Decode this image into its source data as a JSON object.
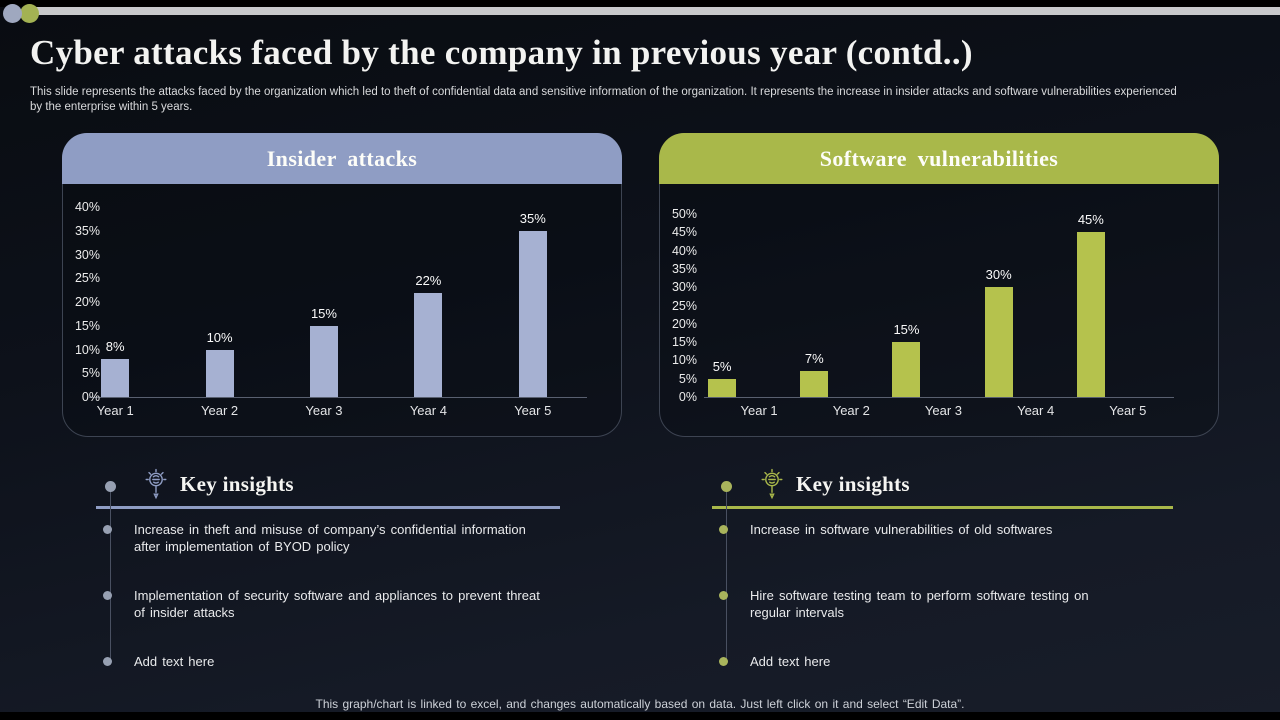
{
  "slide": {
    "title": "Cyber attacks faced by the company in previous year (contd..)",
    "subtitle": "This slide represents the attacks faced by the organization which led to theft of confidential data and sensitive information of the organization. It represents the increase in insider attacks and software vulnerabilities experienced by the enterprise within 5 years.",
    "footer_note": "This graph/chart is linked to excel, and changes automatically based on data. Just left click on it and select “Edit Data”."
  },
  "decor": {
    "topbar_color": "#c8c9cb",
    "circle_left_color": "#9fa8bf",
    "circle_right_color": "#a3b253"
  },
  "chart_data": [
    {
      "type": "bar",
      "title": "Insider attacks",
      "categories": [
        "Year 1",
        "Year 2",
        "Year 3",
        "Year 4",
        "Year 5"
      ],
      "values": [
        8,
        10,
        15,
        22,
        35
      ],
      "value_labels": [
        "8%",
        "10%",
        "15%",
        "22%",
        "35%"
      ],
      "xlabel": "",
      "ylabel": "",
      "ylim": [
        0,
        40
      ],
      "ytick_step": 5,
      "grid": false,
      "legend": "none",
      "header_color": "#8f9dc4",
      "bar_color": "#a6b1d2"
    },
    {
      "type": "bar",
      "title": "Software vulnerabilities",
      "categories": [
        "Year 1",
        "Year 2",
        "Year 3",
        "Year 4",
        "Year 5"
      ],
      "values": [
        5,
        7,
        15,
        30,
        45
      ],
      "value_labels": [
        "5%",
        "7%",
        "15%",
        "30%",
        "45%"
      ],
      "xlabel": "",
      "ylabel": "",
      "ylim": [
        0,
        50
      ],
      "ytick_step": 5,
      "grid": false,
      "legend": "none",
      "header_color": "#a9b84a",
      "bar_color": "#b5c24d"
    }
  ],
  "insights": [
    {
      "heading": "Key insights",
      "icon": "lightbulb-icon",
      "accent_color": "#8f9dc4",
      "dot_color": "#97a0b2",
      "items": [
        "Increase in theft and misuse of company’s confidential information\nafter implementation of BYOD policy",
        "Implementation of security software and appliances to prevent threat\nof insider attacks",
        "Add text here"
      ]
    },
    {
      "heading": "Key insights",
      "icon": "lightbulb-icon",
      "accent_color": "#a9b84a",
      "dot_color": "#a9b45c",
      "items": [
        "Increase in software vulnerabilities of old softwares",
        "Hire software testing team to perform software testing on\nregular intervals",
        "Add text here"
      ]
    }
  ]
}
